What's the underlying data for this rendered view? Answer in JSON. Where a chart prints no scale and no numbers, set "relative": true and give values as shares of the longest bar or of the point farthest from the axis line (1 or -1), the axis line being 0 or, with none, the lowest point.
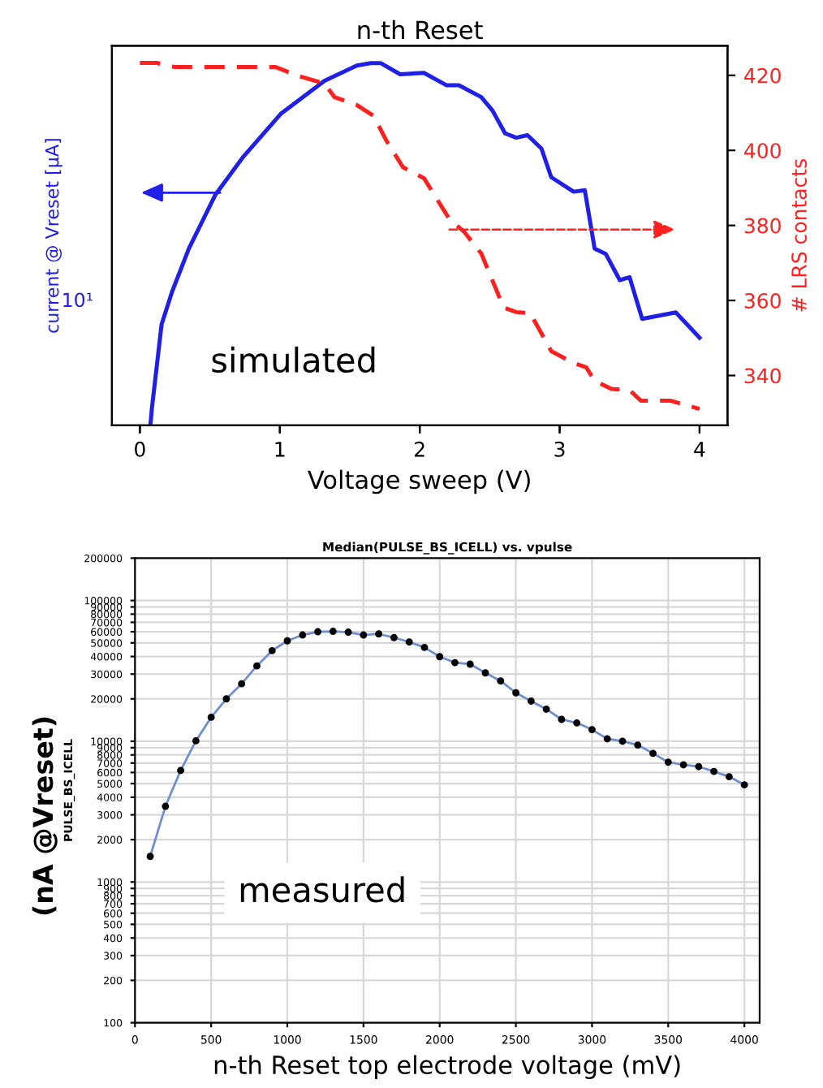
{
  "chart_data": [
    {
      "type": "line",
      "title": "n-th Reset",
      "xlabel": "Voltage sweep (V)",
      "ylabel": "current @ Vreset [μA]",
      "annotations": [
        "simulated",
        "10¹"
      ],
      "relative": true,
      "tick_labels": "x",
      "grid": false,
      "legend": false,
      "xlim": [
        -0.2,
        4.2
      ],
      "xticks": [
        0,
        1,
        2,
        3,
        4
      ],
      "series": [
        {
          "color": "#1f1fe6",
          "line_style": "solid",
          "x": [
            0.075,
            0.085,
            0.155,
            0.23,
            0.35,
            0.54,
            0.74,
            1.01,
            1.32,
            1.55,
            1.65,
            1.72,
            1.86,
            2.03,
            2.19,
            2.28,
            2.44,
            2.52,
            2.61,
            2.69,
            2.77,
            2.87,
            2.94,
            3.1,
            3.18,
            3.25,
            3.33,
            3.43,
            3.5,
            3.59,
            3.83,
            4.0
          ],
          "values": [
            0.0,
            0.045,
            0.279,
            0.369,
            0.488,
            0.637,
            0.742,
            0.861,
            0.951,
            0.993,
            1.0,
            1.0,
            0.969,
            0.973,
            0.939,
            0.939,
            0.906,
            0.869,
            0.806,
            0.794,
            0.801,
            0.764,
            0.685,
            0.645,
            0.649,
            0.488,
            0.473,
            0.401,
            0.409,
            0.294,
            0.312,
            0.242
          ]
        }
      ]
    },
    {
      "type": "line",
      "ylabel": "# LRS contacts",
      "tick_labels": "y",
      "grid": false,
      "legend": false,
      "xlim": [
        -0.2,
        4.2
      ],
      "xticks": [
        0,
        1,
        2,
        3,
        4
      ],
      "ylim": [
        326.7,
        427.9
      ],
      "yticks": [
        340,
        360,
        380,
        400,
        420
      ],
      "series": [
        {
          "color": "#ff2020",
          "line_style": "dashed",
          "x": [
            0.0,
            0.12,
            0.25,
            0.97,
            1.12,
            1.32,
            1.39,
            1.55,
            1.67,
            1.76,
            1.88,
            2.03,
            2.21,
            2.32,
            2.44,
            2.6,
            2.69,
            2.79,
            2.94,
            3.1,
            3.19,
            3.25,
            3.37,
            3.5,
            3.58,
            3.79,
            4.0
          ],
          "values": [
            423.3,
            423.3,
            422.2,
            422.2,
            420.0,
            417.8,
            414.2,
            412.1,
            409.2,
            402.7,
            395.5,
            392.6,
            381.8,
            378.2,
            372.5,
            358.1,
            356.9,
            356.6,
            346.5,
            343.3,
            342.2,
            338.6,
            336.4,
            336.1,
            333.3,
            333.3,
            331.1
          ]
        }
      ]
    },
    {
      "type": "line",
      "title": "Median(PULSE_BS_ICELL) vs. vpulse",
      "xlabel": "n-th Reset top electrode voltage (mV)",
      "ylabel": "PULSE_BS_ICELL",
      "annotations": [
        "measured",
        "(nA @Vreset)"
      ],
      "log": "y",
      "grid": true,
      "legend": false,
      "marker": "circle",
      "xlim": [
        0,
        4100
      ],
      "xticks": [
        0,
        500,
        1000,
        1500,
        2000,
        2500,
        3000,
        3500,
        4000
      ],
      "ylim": [
        100,
        200000
      ],
      "yticks": [
        100,
        200,
        300,
        400,
        500,
        600,
        700,
        800,
        900,
        1000,
        2000,
        3000,
        4000,
        5000,
        6000,
        7000,
        8000,
        9000,
        10000,
        20000,
        30000,
        40000,
        50000,
        60000,
        70000,
        80000,
        90000,
        100000,
        200000
      ],
      "series": [
        {
          "color": "#6f8fcf",
          "line_style": "solid",
          "x": [
            100,
            200,
            300,
            400,
            500,
            600,
            700,
            800,
            900,
            1000,
            1100,
            1200,
            1300,
            1400,
            1500,
            1600,
            1700,
            1800,
            1900,
            2000,
            2100,
            2200,
            2300,
            2400,
            2500,
            2600,
            2700,
            2800,
            2900,
            3000,
            3100,
            3200,
            3300,
            3400,
            3500,
            3600,
            3700,
            3800,
            3900,
            4000
          ],
          "values": [
            1520,
            3450,
            6200,
            10070,
            14800,
            20000,
            25600,
            34300,
            44000,
            51700,
            56900,
            60000,
            60400,
            59600,
            56900,
            57900,
            54500,
            50700,
            46400,
            39900,
            36200,
            35300,
            30600,
            26800,
            22100,
            19300,
            16900,
            14300,
            13500,
            12100,
            10400,
            10000,
            9400,
            8200,
            7100,
            6800,
            6600,
            6100,
            5600,
            4900
          ]
        }
      ]
    }
  ]
}
